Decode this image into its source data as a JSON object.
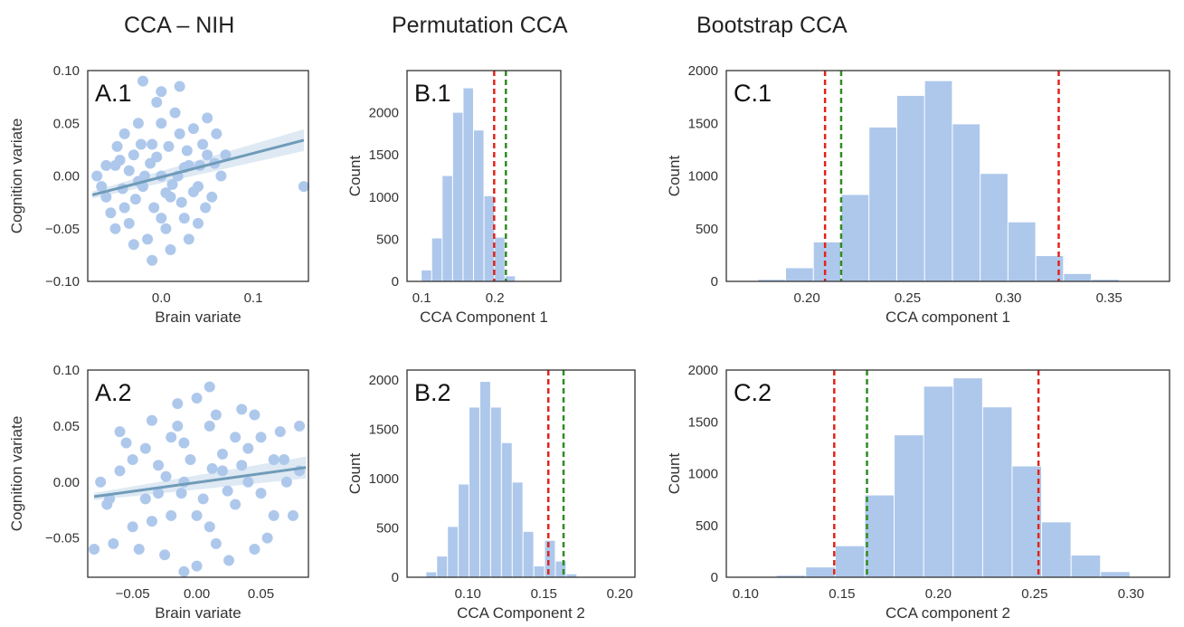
{
  "column_titles": {
    "a": "CCA – NIH",
    "b": "Permutation CCA",
    "c": "Bootstrap CCA"
  },
  "colors": {
    "bar": "#aec8ec",
    "point": "#aec8ec",
    "regression": "#6f9bb8",
    "ci_band": "#d6e4f0",
    "red_line": "#e0241b",
    "green_line": "#2f8c22",
    "frame": "#333333"
  },
  "chart_data": [
    {
      "id": "A.1",
      "type": "scatter",
      "panel_label": "A.1",
      "xlabel": "Brain variate",
      "ylabel": "Cognition variate",
      "xlim": [
        -0.08,
        0.16
      ],
      "ylim": [
        -0.1,
        0.1
      ],
      "xticks": [
        0.0,
        0.1
      ],
      "xtick_labels": [
        "0.0",
        "0.1"
      ],
      "yticks": [
        -0.1,
        -0.05,
        0.0,
        0.05,
        0.1
      ],
      "ytick_labels": [
        "−0.10",
        "−0.05",
        "0.00",
        "0.05",
        "0.10"
      ],
      "regression": {
        "x": [
          -0.075,
          0.155
        ],
        "y": [
          -0.018,
          0.034
        ]
      },
      "points": [
        [
          -0.06,
          -0.02
        ],
        [
          -0.05,
          0.01
        ],
        [
          -0.04,
          -0.03
        ],
        [
          -0.03,
          0.02
        ],
        [
          -0.02,
          -0.01
        ],
        [
          -0.01,
          0.03
        ],
        [
          0.0,
          0.0
        ],
        [
          0.01,
          -0.02
        ],
        [
          0.02,
          0.04
        ],
        [
          0.03,
          0.01
        ],
        [
          0.04,
          -0.01
        ],
        [
          0.05,
          0.02
        ],
        [
          -0.045,
          0.015
        ],
        [
          -0.035,
          -0.045
        ],
        [
          -0.025,
          0.05
        ],
        [
          -0.015,
          -0.06
        ],
        [
          -0.005,
          0.07
        ],
        [
          0.005,
          -0.05
        ],
        [
          0.015,
          0.06
        ],
        [
          0.025,
          -0.04
        ],
        [
          0.035,
          0.045
        ],
        [
          0.045,
          0.03
        ],
        [
          0.055,
          -0.02
        ],
        [
          0.06,
          0.04
        ],
        [
          -0.02,
          0.09
        ],
        [
          0.0,
          0.08
        ],
        [
          0.02,
          0.085
        ],
        [
          -0.01,
          -0.08
        ],
        [
          0.01,
          -0.07
        ],
        [
          -0.03,
          -0.065
        ],
        [
          0.03,
          -0.06
        ],
        [
          0.05,
          0.055
        ],
        [
          -0.06,
          0.01
        ],
        [
          -0.065,
          -0.01
        ],
        [
          0.065,
          0.0
        ],
        [
          -0.05,
          -0.05
        ],
        [
          0.04,
          -0.045
        ],
        [
          -0.04,
          0.04
        ],
        [
          0.155,
          -0.01
        ],
        [
          -0.07,
          0.0
        ],
        [
          0.07,
          0.02
        ],
        [
          -0.012,
          0.012
        ],
        [
          0.012,
          -0.008
        ],
        [
          -0.028,
          -0.022
        ],
        [
          0.028,
          0.024
        ],
        [
          0.018,
          0.0
        ],
        [
          -0.018,
          0.0
        ],
        [
          0.008,
          0.028
        ],
        [
          -0.008,
          -0.03
        ],
        [
          0.042,
          0.01
        ],
        [
          -0.042,
          -0.012
        ],
        [
          0.048,
          -0.03
        ],
        [
          -0.048,
          0.028
        ],
        [
          0.022,
          -0.025
        ],
        [
          -0.022,
          0.03
        ],
        [
          0.0,
          0.05
        ],
        [
          0.0,
          -0.04
        ],
        [
          0.035,
          -0.015
        ],
        [
          -0.035,
          0.005
        ],
        [
          -0.055,
          -0.035
        ],
        [
          0.058,
          0.012
        ],
        [
          -0.005,
          0.018
        ],
        [
          0.005,
          -0.016
        ],
        [
          -0.025,
          -0.005
        ],
        [
          0.025,
          0.008
        ]
      ]
    },
    {
      "id": "B.1",
      "type": "bar",
      "panel_label": "B.1",
      "xlabel": "CCA Component 1",
      "ylabel": "Count",
      "xlim": [
        0.08,
        0.29
      ],
      "ylim": [
        0,
        2500
      ],
      "xticks": [
        0.1,
        0.2
      ],
      "xtick_labels": [
        "0.1",
        "0.2"
      ],
      "yticks": [
        0,
        500,
        1000,
        1500,
        2000
      ],
      "ytick_labels": [
        "0",
        "500",
        "1000",
        "1500",
        "2000"
      ],
      "bin_width": 0.0143,
      "bin_starts": [
        0.0993,
        0.1136,
        0.1279,
        0.1422,
        0.1565,
        0.1708,
        0.1851,
        0.1994,
        0.2137
      ],
      "values": [
        130,
        510,
        1250,
        2000,
        2290,
        1790,
        1010,
        520,
        60
      ],
      "red_line": 0.199,
      "green_line": 0.215
    },
    {
      "id": "C.1",
      "type": "bar",
      "panel_label": "C.1",
      "xlabel": "CCA component 1",
      "ylabel": "Count",
      "xlim": [
        0.16,
        0.38
      ],
      "ylim": [
        0,
        2000
      ],
      "xticks": [
        0.2,
        0.25,
        0.3,
        0.35
      ],
      "xtick_labels": [
        "0.20",
        "0.25",
        "0.30",
        "0.35"
      ],
      "yticks": [
        0,
        500,
        1000,
        1500,
        2000
      ],
      "ytick_labels": [
        "0",
        "500",
        "1000",
        "1500",
        "2000"
      ],
      "bin_width": 0.0138,
      "bin_starts": [
        0.1618,
        0.1756,
        0.1894,
        0.2032,
        0.217,
        0.2308,
        0.2446,
        0.2584,
        0.2722,
        0.286,
        0.2998,
        0.3136,
        0.3274,
        0.3412,
        0.355
      ],
      "values": [
        0,
        15,
        125,
        370,
        820,
        1460,
        1760,
        1900,
        1490,
        1020,
        560,
        240,
        70,
        15,
        0
      ],
      "red_line": [
        0.209,
        0.325
      ],
      "green_line": 0.217
    },
    {
      "id": "A.2",
      "type": "scatter",
      "panel_label": "A.2",
      "xlabel": "Brain variate",
      "ylabel": "Cognition variate",
      "xlim": [
        -0.085,
        0.087
      ],
      "ylim": [
        -0.085,
        0.1
      ],
      "xticks": [
        -0.05,
        0.0,
        0.05
      ],
      "xtick_labels": [
        "−0.05",
        "0.00",
        "0.05"
      ],
      "yticks": [
        -0.05,
        0.0,
        0.05,
        0.1
      ],
      "ytick_labels": [
        "−0.05",
        "0.00",
        "0.05",
        "0.10"
      ],
      "regression": {
        "x": [
          -0.08,
          0.085
        ],
        "y": [
          -0.013,
          0.013
        ]
      },
      "points": [
        [
          -0.07,
          -0.02
        ],
        [
          -0.06,
          0.01
        ],
        [
          -0.05,
          -0.04
        ],
        [
          -0.04,
          0.03
        ],
        [
          -0.03,
          -0.01
        ],
        [
          -0.02,
          0.04
        ],
        [
          -0.01,
          0.0
        ],
        [
          0.0,
          -0.03
        ],
        [
          0.01,
          0.05
        ],
        [
          0.02,
          0.01
        ],
        [
          0.03,
          -0.02
        ],
        [
          0.04,
          0.03
        ],
        [
          0.05,
          -0.01
        ],
        [
          0.06,
          0.02
        ],
        [
          0.07,
          0.0
        ],
        [
          0.08,
          0.01
        ],
        [
          -0.075,
          0.0
        ],
        [
          0.075,
          -0.03
        ],
        [
          -0.065,
          -0.055
        ],
        [
          0.065,
          0.045
        ],
        [
          -0.055,
          0.035
        ],
        [
          0.055,
          -0.05
        ],
        [
          -0.045,
          -0.06
        ],
        [
          0.045,
          0.06
        ],
        [
          -0.035,
          0.055
        ],
        [
          0.035,
          0.065
        ],
        [
          -0.025,
          -0.065
        ],
        [
          0.025,
          -0.07
        ],
        [
          -0.015,
          0.07
        ],
        [
          0.015,
          0.06
        ],
        [
          0.0,
          0.075
        ],
        [
          0.0,
          -0.075
        ],
        [
          -0.005,
          0.02
        ],
        [
          0.005,
          -0.015
        ],
        [
          -0.02,
          -0.03
        ],
        [
          0.02,
          0.025
        ],
        [
          -0.04,
          -0.015
        ],
        [
          0.04,
          0.0
        ],
        [
          -0.01,
          0.035
        ],
        [
          0.01,
          -0.04
        ],
        [
          0.03,
          0.04
        ],
        [
          -0.03,
          0.015
        ],
        [
          0.06,
          -0.03
        ],
        [
          -0.06,
          0.045
        ],
        [
          0.08,
          0.05
        ],
        [
          -0.08,
          -0.06
        ],
        [
          0.045,
          -0.06
        ],
        [
          -0.012,
          -0.01
        ],
        [
          0.012,
          0.012
        ],
        [
          -0.024,
          0.005
        ],
        [
          0.024,
          -0.008
        ],
        [
          0.035,
          0.015
        ],
        [
          -0.035,
          -0.035
        ],
        [
          0.05,
          0.04
        ],
        [
          -0.05,
          0.02
        ],
        [
          0.015,
          -0.055
        ],
        [
          -0.015,
          0.05
        ],
        [
          0.068,
          0.02
        ],
        [
          -0.068,
          -0.015
        ],
        [
          0.01,
          0.085
        ],
        [
          -0.01,
          -0.08
        ]
      ]
    },
    {
      "id": "B.2",
      "type": "bar",
      "panel_label": "B.2",
      "xlabel": "CCA Component 2",
      "ylabel": "Count",
      "xlim": [
        0.06,
        0.21
      ],
      "ylim": [
        0,
        2100
      ],
      "xticks": [
        0.1,
        0.15,
        0.2
      ],
      "xtick_labels": [
        "0.10",
        "0.15",
        "0.20"
      ],
      "yticks": [
        0,
        500,
        1000,
        1500,
        2000
      ],
      "ytick_labels": [
        "0",
        "500",
        "1000",
        "1500",
        "2000"
      ],
      "bin_width": 0.0071,
      "bin_starts": [
        0.0724,
        0.0795,
        0.0866,
        0.0937,
        0.1008,
        0.1079,
        0.115,
        0.1221,
        0.1292,
        0.1363,
        0.1434,
        0.1505,
        0.1576,
        0.1647
      ],
      "values": [
        50,
        210,
        510,
        940,
        1720,
        1980,
        1720,
        1360,
        960,
        460,
        110,
        370,
        160,
        30
      ],
      "red_line": 0.153,
      "green_line": 0.163
    },
    {
      "id": "C.2",
      "type": "bar",
      "panel_label": "C.2",
      "xlabel": "CCA component 2",
      "ylabel": "Count",
      "xlim": [
        0.09,
        0.32
      ],
      "ylim": [
        0,
        2000
      ],
      "xticks": [
        0.1,
        0.15,
        0.2,
        0.25,
        0.3
      ],
      "xtick_labels": [
        "0.10",
        "0.15",
        "0.20",
        "0.25",
        "0.30"
      ],
      "yticks": [
        0,
        500,
        1000,
        1500,
        2000
      ],
      "ytick_labels": [
        "0",
        "500",
        "1000",
        "1500",
        "2000"
      ],
      "bin_width": 0.0153,
      "bin_starts": [
        0.1006,
        0.1159,
        0.1312,
        0.1465,
        0.1618,
        0.1771,
        0.1924,
        0.2077,
        0.223,
        0.2383,
        0.2536,
        0.2689
      ],
      "values": [
        0,
        15,
        95,
        300,
        790,
        1370,
        1840,
        1920,
        1640,
        1070,
        530,
        210
      ],
      "extra": {
        "bin_start": 0.2689,
        "width": 0.0153
      },
      "tail": [
        {
          "bin_start": 0.2689,
          "value": 210
        },
        {
          "bin_start": 0.2842,
          "value": 50
        }
      ],
      "red_line": [
        0.146,
        0.252
      ],
      "green_line": 0.163
    }
  ]
}
